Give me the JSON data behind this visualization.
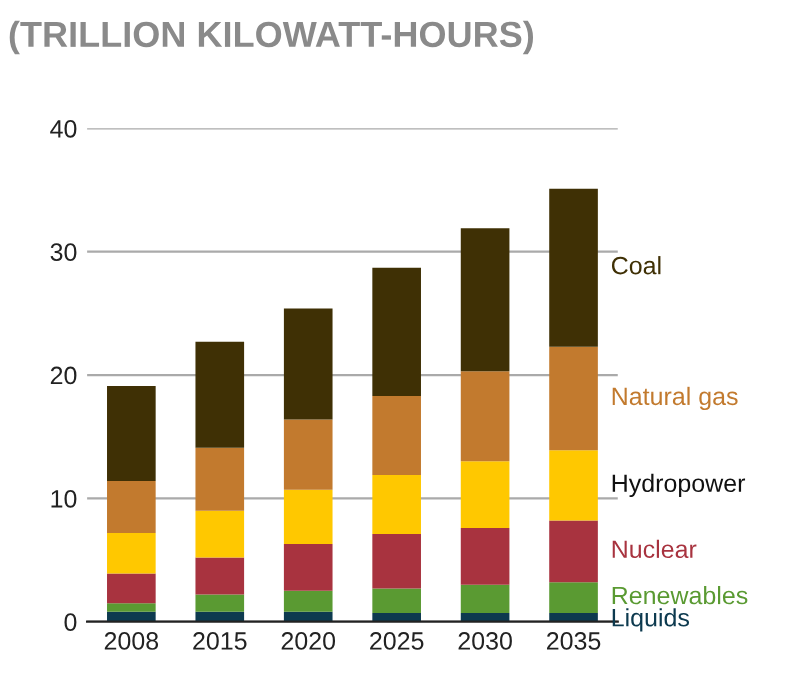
{
  "chart_data": {
    "type": "bar",
    "stacked": true,
    "title": "(TRILLION KILOWATT-HOURS)",
    "categories": [
      "2008",
      "2015",
      "2020",
      "2025",
      "2030",
      "2035"
    ],
    "series": [
      {
        "name": "Liquids",
        "color": "#0d3a4f",
        "values": [
          0.8,
          0.8,
          0.8,
          0.7,
          0.7,
          0.7
        ]
      },
      {
        "name": "Renewables",
        "color": "#5a9a32",
        "values": [
          0.7,
          1.4,
          1.7,
          2.0,
          2.3,
          2.5
        ]
      },
      {
        "name": "Nuclear",
        "color": "#a8333f",
        "values": [
          2.4,
          3.0,
          3.8,
          4.4,
          4.6,
          5.0
        ]
      },
      {
        "name": "Hydropower",
        "color": "#ffc800",
        "values": [
          3.3,
          3.8,
          4.4,
          4.8,
          5.4,
          5.7
        ]
      },
      {
        "name": "Natural gas",
        "color": "#c27a2e",
        "values": [
          4.2,
          5.1,
          5.7,
          6.4,
          7.3,
          8.4
        ]
      },
      {
        "name": "Coal",
        "color": "#3f3005",
        "values": [
          7.7,
          8.6,
          9.0,
          10.4,
          11.6,
          12.8
        ]
      }
    ],
    "ylim": [
      0,
      40
    ],
    "yticks": [
      0,
      10,
      20,
      30,
      40
    ],
    "grid": "y"
  }
}
